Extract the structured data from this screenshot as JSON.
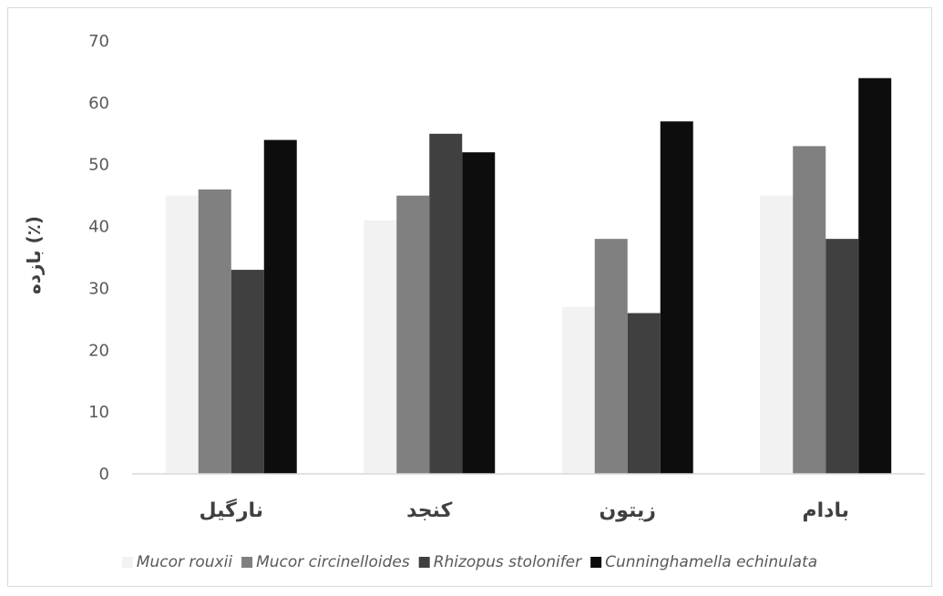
{
  "chart_data": {
    "type": "bar",
    "title": "",
    "xlabel": "",
    "ylabel": "بازده (٪)",
    "ylim": [
      0,
      70
    ],
    "yticks": [
      0,
      10,
      20,
      30,
      40,
      50,
      60,
      70
    ],
    "grid": false,
    "legend_position": "bottom",
    "categories": [
      "نارگیل",
      "کنجد",
      "زیتون",
      "بادام"
    ],
    "series": [
      {
        "name": "Mucor rouxii",
        "color": "#f2f2f2",
        "values": [
          45,
          41,
          27,
          45
        ]
      },
      {
        "name": "Mucor circinelloides",
        "color": "#808080",
        "values": [
          46,
          45,
          38,
          53
        ]
      },
      {
        "name": "Rhizopus stolonifer",
        "color": "#404040",
        "values": [
          33,
          55,
          26,
          38
        ]
      },
      {
        "name": "Cunninghamella echinulata",
        "color": "#0d0d0d",
        "values": [
          54,
          52,
          57,
          64
        ]
      }
    ]
  }
}
